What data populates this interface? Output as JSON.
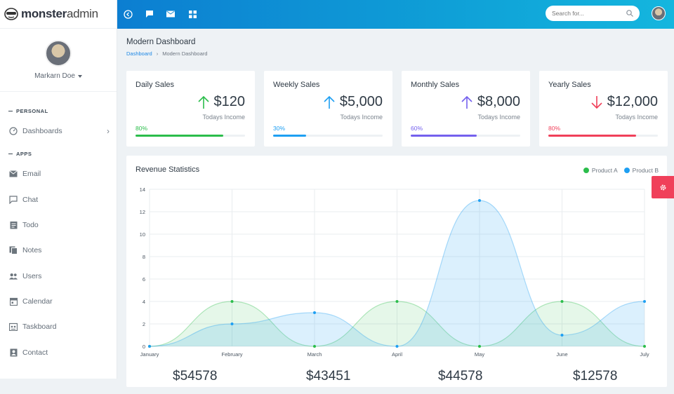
{
  "brand": {
    "bold": "monster",
    "light": "admin"
  },
  "user": {
    "name": "Markarn Doe"
  },
  "sidebar": {
    "personal_label": "PERSONAL",
    "apps_label": "APPS",
    "items": [
      {
        "label": "Dashboards",
        "icon": "dashboard-icon"
      },
      {
        "label": "Email",
        "icon": "email-icon"
      },
      {
        "label": "Chat",
        "icon": "chat-icon"
      },
      {
        "label": "Todo",
        "icon": "todo-icon"
      },
      {
        "label": "Notes",
        "icon": "notes-icon"
      },
      {
        "label": "Users",
        "icon": "users-icon"
      },
      {
        "label": "Calendar",
        "icon": "calendar-icon"
      },
      {
        "label": "Taskboard",
        "icon": "taskboard-icon"
      },
      {
        "label": "Contact",
        "icon": "contact-icon"
      }
    ]
  },
  "search": {
    "placeholder": "Search for..."
  },
  "page": {
    "title": "Modern Dashboard",
    "crumb_link": "Dashboard",
    "crumb_current": "Modern Dashboard"
  },
  "stats": [
    {
      "label": "Daily Sales",
      "amount": "$120",
      "sub": "Todays Income",
      "pct": "80%",
      "progress": 0.8,
      "color": "#2bbd4b"
    },
    {
      "label": "Weekly Sales",
      "amount": "$5,000",
      "sub": "Todays Income",
      "pct": "30%",
      "progress": 0.3,
      "color": "#1e9ff2"
    },
    {
      "label": "Monthly Sales",
      "amount": "$8,000",
      "sub": "Todays Income",
      "pct": "60%",
      "progress": 0.6,
      "color": "#7460ee"
    },
    {
      "label": "Yearly Sales",
      "amount": "$12,000",
      "sub": "Todays Income",
      "pct": "80%",
      "progress": 0.8,
      "color": "#f0405a"
    }
  ],
  "revenue": {
    "title": "Revenue Statistics",
    "totals": [
      "$54578",
      "$43451",
      "$44578",
      "$12578"
    ]
  },
  "chart_data": {
    "type": "area",
    "title": "Revenue Statistics",
    "categories": [
      "January",
      "February",
      "March",
      "April",
      "May",
      "June",
      "July"
    ],
    "ylim": [
      0,
      14
    ],
    "yticks": [
      0,
      2,
      4,
      6,
      8,
      10,
      12,
      14
    ],
    "grid": true,
    "legend_position": "top-right",
    "series": [
      {
        "name": "Product A",
        "color": "#2bbd4b",
        "values": [
          0,
          4,
          0,
          4,
          0,
          4,
          0
        ]
      },
      {
        "name": "Product B",
        "color": "#1e9ff2",
        "values": [
          0,
          2,
          3,
          0,
          13,
          1,
          4
        ]
      }
    ]
  }
}
